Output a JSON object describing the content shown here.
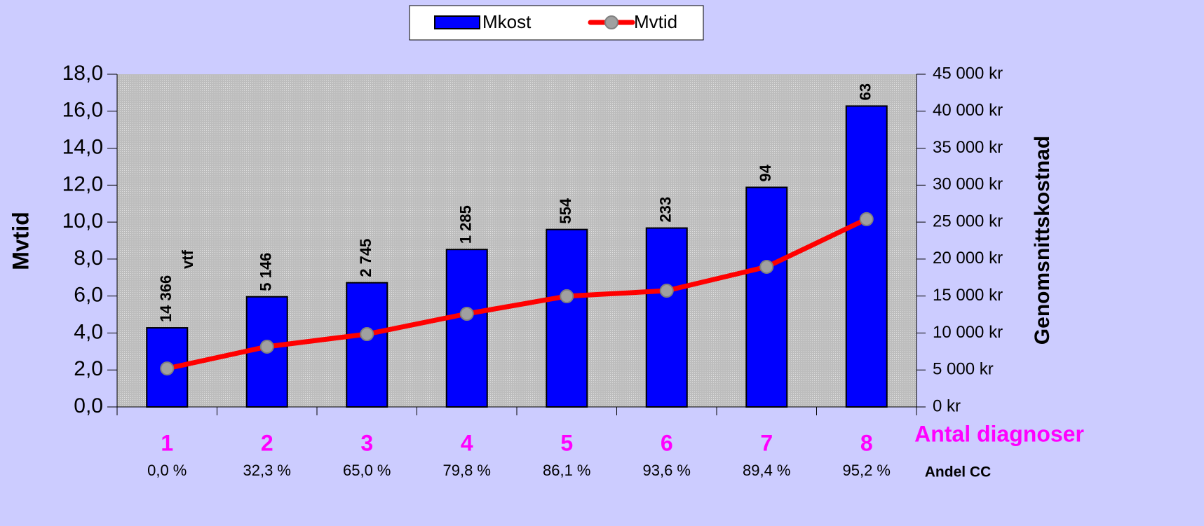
{
  "chart_data": {
    "type": "bar-line",
    "categories": [
      "1",
      "2",
      "3",
      "4",
      "5",
      "6",
      "7",
      "8"
    ],
    "x_label": "Antal diagnoser",
    "y_label": "Mvtid",
    "y2_label": "Genomsnittskostnad",
    "series": [
      {
        "name": "Mkost",
        "type": "bar",
        "axis": "y2",
        "color": "#0000ff",
        "values": [
          10700,
          14900,
          16800,
          21300,
          24000,
          24200,
          29700,
          40700
        ]
      },
      {
        "name": "Mvtid",
        "type": "line",
        "axis": "y",
        "color": "#ff0000",
        "marker_color": "#a0a0a0",
        "values": [
          2.08,
          3.26,
          3.94,
          5.04,
          5.99,
          6.29,
          7.58,
          10.16
        ]
      }
    ],
    "bar_annotations": [
      "14 366",
      "5 146",
      "2 745",
      "1 285",
      "554",
      "233",
      "94",
      "63"
    ],
    "bar_annotation_note": "vtf",
    "share_label": "Andel CC",
    "shares": [
      "0,0 %",
      "32,3 %",
      "65,0 %",
      "79,8 %",
      "86,1 %",
      "93,6 %",
      "89,4 %",
      "95,2 %"
    ],
    "ylim": [
      0,
      18
    ],
    "yticks": [
      {
        "value": 0,
        "label": "0,0"
      },
      {
        "value": 2,
        "label": "2,0"
      },
      {
        "value": 4,
        "label": "4,0"
      },
      {
        "value": 6,
        "label": "6,0"
      },
      {
        "value": 8,
        "label": "8,0"
      },
      {
        "value": 10,
        "label": "10,0"
      },
      {
        "value": 12,
        "label": "12,0"
      },
      {
        "value": 14,
        "label": "14,0"
      },
      {
        "value": 16,
        "label": "16,0"
      },
      {
        "value": 18,
        "label": "18,0"
      }
    ],
    "y2lim": [
      0,
      45000
    ],
    "y2ticks": [
      {
        "value": 0,
        "label": "0 kr"
      },
      {
        "value": 5000,
        "label": "5 000 kr"
      },
      {
        "value": 10000,
        "label": "10 000 kr"
      },
      {
        "value": 15000,
        "label": "15 000 kr"
      },
      {
        "value": 20000,
        "label": "20 000 kr"
      },
      {
        "value": 25000,
        "label": "25 000 kr"
      },
      {
        "value": 30000,
        "label": "30 000 kr"
      },
      {
        "value": 35000,
        "label": "35 000 kr"
      },
      {
        "value": 40000,
        "label": "40 000 kr"
      },
      {
        "value": 45000,
        "label": "45 000 kr"
      }
    ],
    "legend": "top"
  }
}
